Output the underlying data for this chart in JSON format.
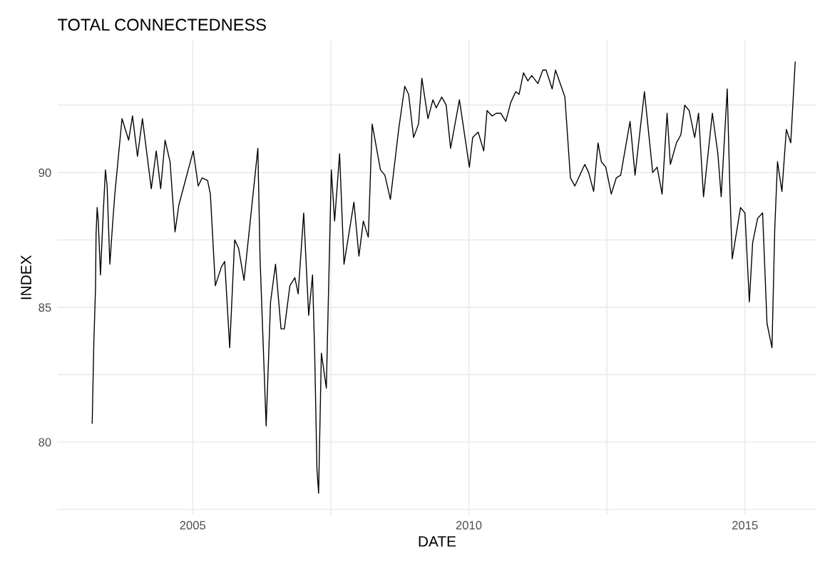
{
  "chart_data": {
    "type": "line",
    "title": "TOTAL CONNECTEDNESS",
    "xlabel": "DATE",
    "ylabel": "INDEX",
    "grid": true,
    "legend": false,
    "xlim": [
      2002.55,
      2016.3
    ],
    "ylim": [
      77.3,
      94.9
    ],
    "xticks": [
      2005,
      {
        "value": 2007.5,
        "label": null
      },
      2010,
      {
        "value": 2012.5,
        "label": null
      },
      2015
    ],
    "yticks": [
      {
        "value": 77.5,
        "label": null
      },
      80,
      {
        "value": 82.5,
        "label": null
      },
      85,
      {
        "value": 87.5,
        "label": null
      },
      90,
      {
        "value": 92.5,
        "label": null
      }
    ],
    "series": [
      {
        "color": "#000000",
        "x": [
          2003.18,
          2003.19,
          2003.21,
          2003.24,
          2003.25,
          2003.27,
          2003.29,
          2003.33,
          2003.38,
          2003.42,
          2003.45,
          2003.5,
          2003.55,
          2003.59,
          2003.72,
          2003.84,
          2003.91,
          2004.0,
          2004.09,
          2004.25,
          2004.34,
          2004.42,
          2004.5,
          2004.59,
          2004.68,
          2004.75,
          2005.01,
          2005.1,
          2005.17,
          2005.27,
          2005.32,
          2005.41,
          2005.52,
          2005.58,
          2005.67,
          2005.76,
          2005.83,
          2005.93,
          2006.18,
          2006.22,
          2006.33,
          2006.41,
          2006.5,
          2006.6,
          2006.66,
          2006.76,
          2006.85,
          2006.91,
          2007.01,
          2007.1,
          2007.17,
          2007.21,
          2007.25,
          2007.28,
          2007.33,
          2007.42,
          2007.51,
          2007.57,
          2007.66,
          2007.74,
          2007.92,
          2008.01,
          2008.09,
          2008.18,
          2008.25,
          2008.4,
          2008.48,
          2008.58,
          2008.73,
          2008.84,
          2008.91,
          2009.0,
          2009.09,
          2009.15,
          2009.26,
          2009.35,
          2009.41,
          2009.51,
          2009.59,
          2009.67,
          2009.83,
          2010.01,
          2010.07,
          2010.17,
          2010.27,
          2010.33,
          2010.42,
          2010.5,
          2010.58,
          2010.67,
          2010.76,
          2010.85,
          2010.91,
          2010.99,
          2011.07,
          2011.14,
          2011.25,
          2011.34,
          2011.4,
          2011.51,
          2011.57,
          2011.74,
          2011.84,
          2011.92,
          2012.1,
          2012.17,
          2012.26,
          2012.34,
          2012.4,
          2012.48,
          2012.58,
          2012.67,
          2012.75,
          2012.92,
          2013.01,
          2013.18,
          2013.24,
          2013.33,
          2013.41,
          2013.5,
          2013.59,
          2013.65,
          2013.76,
          2013.84,
          2013.91,
          2013.99,
          2014.09,
          2014.16,
          2014.25,
          2014.41,
          2014.51,
          2014.57,
          2014.68,
          2014.73,
          2014.77,
          2014.92,
          2015.0,
          2015.08,
          2015.14,
          2015.23,
          2015.32,
          2015.4,
          2015.49,
          2015.54,
          2015.59,
          2015.67,
          2015.75,
          2015.83,
          2015.91
        ],
        "values": [
          80.7,
          81.7,
          83.7,
          85.7,
          87.7,
          88.7,
          88.2,
          86.2,
          88.5,
          90.1,
          89.5,
          86.6,
          88.1,
          89.2,
          92.0,
          91.2,
          92.1,
          90.6,
          92.0,
          89.4,
          90.8,
          89.4,
          91.2,
          90.4,
          87.8,
          88.8,
          90.8,
          89.5,
          89.8,
          89.7,
          89.2,
          85.8,
          86.5,
          86.7,
          83.5,
          87.5,
          87.2,
          86.0,
          90.9,
          86.8,
          80.6,
          85.2,
          86.6,
          84.2,
          84.2,
          85.8,
          86.1,
          85.5,
          88.5,
          84.7,
          86.2,
          83.2,
          79.0,
          78.1,
          83.3,
          82.0,
          90.1,
          88.2,
          90.7,
          86.6,
          88.9,
          86.9,
          88.2,
          87.6,
          91.8,
          90.1,
          89.9,
          89.0,
          91.6,
          93.2,
          92.9,
          91.3,
          91.8,
          93.5,
          92.0,
          92.7,
          92.4,
          92.8,
          92.5,
          90.9,
          92.7,
          90.2,
          91.3,
          91.5,
          90.8,
          92.3,
          92.1,
          92.2,
          92.2,
          91.9,
          92.6,
          93.0,
          92.9,
          93.7,
          93.4,
          93.6,
          93.3,
          93.8,
          93.8,
          93.1,
          93.8,
          92.8,
          89.8,
          89.5,
          90.3,
          90.0,
          89.3,
          91.1,
          90.4,
          90.2,
          89.2,
          89.8,
          89.9,
          91.9,
          89.9,
          93.0,
          91.8,
          90.0,
          90.2,
          89.2,
          92.2,
          90.3,
          91.1,
          91.4,
          92.5,
          92.3,
          91.3,
          92.2,
          89.1,
          92.2,
          90.7,
          89.1,
          93.1,
          89.2,
          86.8,
          88.7,
          88.5,
          85.2,
          87.4,
          88.3,
          88.5,
          84.4,
          83.5,
          87.9,
          90.4,
          89.3,
          91.6,
          91.1,
          94.1
        ]
      }
    ]
  }
}
